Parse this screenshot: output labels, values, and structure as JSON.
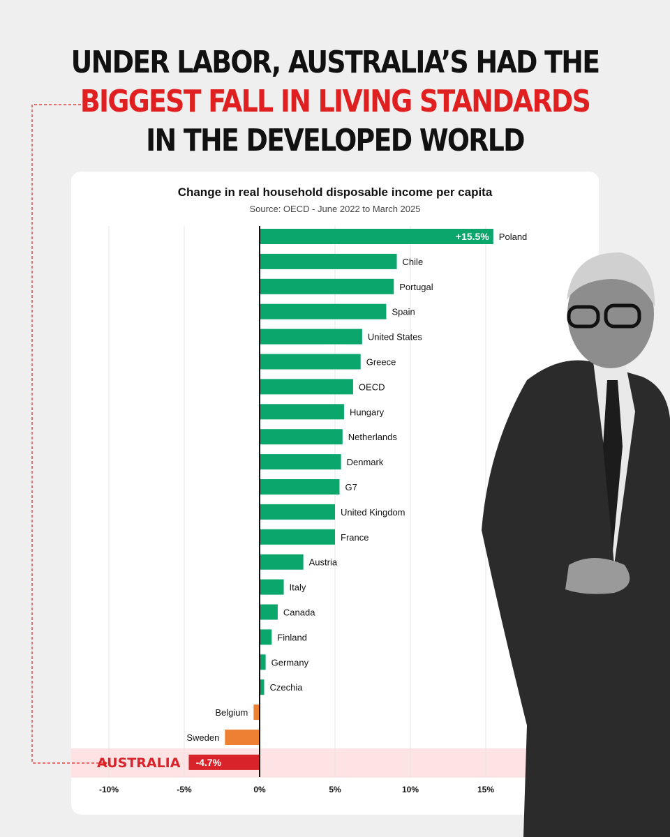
{
  "headline": {
    "line1": "UNDER LABOR, AUSTRALIA’S HAD THE",
    "line2": "BIGGEST FALL IN LIVING STANDARDS",
    "line3": "IN THE DEVELOPED WORLD"
  },
  "colors": {
    "positive": "#0ba66b",
    "negative": "#ee8033",
    "highlight": "#d8232a",
    "highlight_band": "#fde3e4",
    "headline_accent": "#e02020"
  },
  "chart_data": {
    "type": "bar",
    "orientation": "horizontal",
    "title": "Change in real household disposable income per capita",
    "subtitle": "Source: OECD - June 2022 to March 2025",
    "categories": [
      "Poland",
      "Chile",
      "Portugal",
      "Spain",
      "United States",
      "Greece",
      "OECD",
      "Hungary",
      "Netherlands",
      "Denmark",
      "G7",
      "United Kingdom",
      "France",
      "Austria",
      "Italy",
      "Canada",
      "Finland",
      "Germany",
      "Czechia",
      "Belgium",
      "Sweden",
      "AUSTRALIA"
    ],
    "values": [
      15.5,
      9.1,
      8.9,
      8.4,
      6.8,
      6.7,
      6.2,
      5.6,
      5.5,
      5.4,
      5.3,
      5.0,
      5.0,
      2.9,
      1.6,
      1.2,
      0.8,
      0.4,
      0.3,
      -0.4,
      -2.3,
      -4.7
    ],
    "value_labels": {
      "0": "+15.5%",
      "21": "-4.7%"
    },
    "highlight_index": 21,
    "xlim": [
      -11,
      17
    ],
    "x_ticks": [
      -10,
      -5,
      0,
      5,
      10,
      15
    ],
    "x_tick_labels": [
      "-10%",
      "-5%",
      "0%",
      "5%",
      "10%",
      "15%"
    ],
    "grid": true
  }
}
